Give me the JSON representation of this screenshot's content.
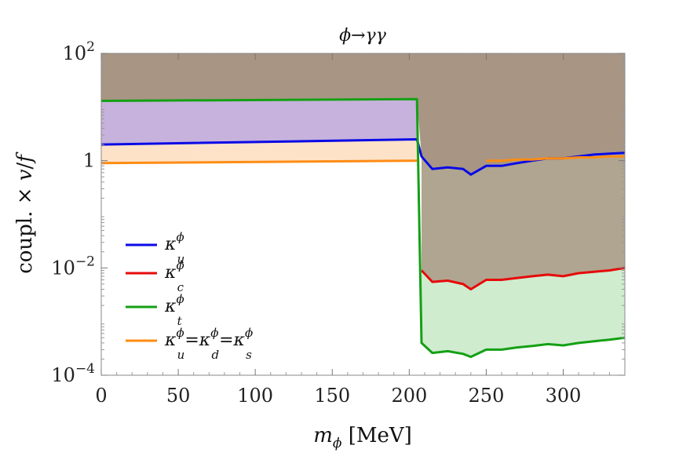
{
  "chart_data": {
    "type": "line",
    "title": "ϕ→γγ",
    "xlabel": "m_ϕ [MeV]",
    "ylabel": "coupl. × v/f",
    "xlim": [
      0,
      340
    ],
    "ylim": [
      0.0001,
      100
    ],
    "yscale": "log",
    "xticks": [
      0,
      50,
      100,
      150,
      200,
      250,
      300
    ],
    "xtick_labels": [
      "0",
      "50",
      "100",
      "150",
      "200",
      "250",
      "300"
    ],
    "yticks": [
      0.0001,
      0.01,
      1,
      100
    ],
    "ytick_labels": [
      {
        "base": "10",
        "exp": "−4"
      },
      {
        "base": "10",
        "exp": "−2"
      },
      {
        "base": "1",
        "exp": ""
      },
      {
        "base": "10",
        "exp": "2"
      }
    ],
    "grid": false,
    "legend_position": "bottom-left",
    "x": [
      0,
      205,
      208,
      215,
      225,
      235,
      240,
      250,
      260,
      270,
      280,
      290,
      300,
      310,
      320,
      330,
      340
    ],
    "series": [
      {
        "name": "κ_u^ϕ",
        "color": "#0a0ae6",
        "fill": "#c6b2dc",
        "values": [
          2.0,
          2.5,
          1.2,
          0.7,
          0.75,
          0.7,
          0.55,
          0.8,
          0.8,
          0.9,
          1.0,
          1.1,
          1.1,
          1.2,
          1.3,
          1.35,
          1.4
        ]
      },
      {
        "name": "κ_c^ϕ",
        "color": "#e60a0a",
        "fill": "#b0a590",
        "values": [
          null,
          null,
          0.009,
          0.0055,
          0.0058,
          0.005,
          0.004,
          0.006,
          0.006,
          0.0065,
          0.007,
          0.0075,
          0.007,
          0.008,
          0.0085,
          0.009,
          0.01
        ]
      },
      {
        "name": "κ_t^ϕ",
        "color": "#14a014",
        "fill": "#cfeccf",
        "values": [
          13.0,
          14.0,
          0.0004,
          0.00026,
          0.00028,
          0.00025,
          0.00022,
          0.0003,
          0.0003,
          0.00033,
          0.00035,
          0.00038,
          0.00036,
          0.0004,
          0.00043,
          0.00046,
          0.0005
        ]
      },
      {
        "name": "κ_u^ϕ=κ_d^ϕ=κ_s^ϕ",
        "color": "#ff8c14",
        "fill": "#fde2c8",
        "values": [
          0.9,
          1.0,
          null,
          null,
          null,
          null,
          null,
          1.0,
          1.0,
          1.05,
          1.05,
          1.1,
          1.1,
          1.15,
          1.15,
          1.2,
          1.2
        ]
      }
    ],
    "excluded_region_color": "#a89584"
  },
  "legend": [
    {
      "sym": "κ",
      "sup": "ϕ",
      "sub": "u",
      "color": "#0a0ae6"
    },
    {
      "sym": "κ",
      "sup": "ϕ",
      "sub": "c",
      "color": "#e60a0a"
    },
    {
      "sym": "κ",
      "sup": "ϕ",
      "sub": "t",
      "color": "#14a014"
    },
    {
      "sym": "κ",
      "sup": "ϕ",
      "sub": "u",
      "extra": "=κ_d^ϕ=κ_s^ϕ",
      "color": "#ff8c14"
    }
  ]
}
